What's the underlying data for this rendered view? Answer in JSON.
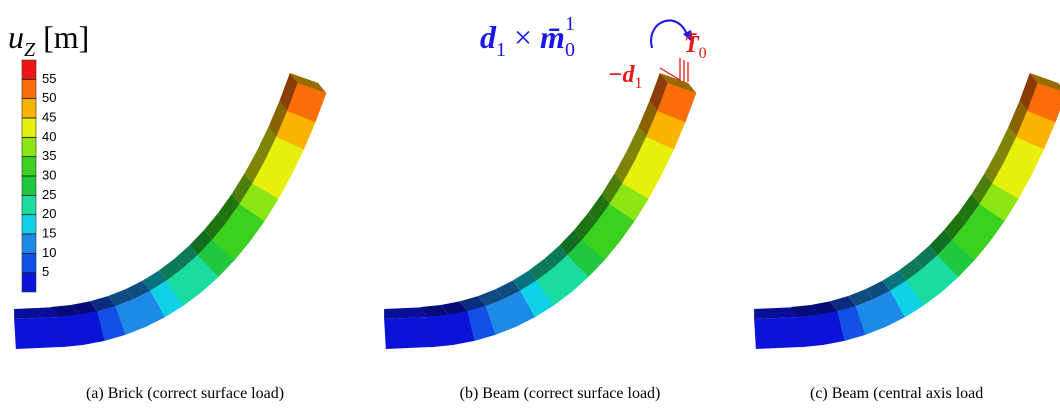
{
  "colorbar": {
    "label_base": "u",
    "label_sub": "Z",
    "label_unit": "[m]",
    "ticks": [
      5,
      10,
      15,
      20,
      25,
      30,
      35,
      40,
      45,
      50,
      55
    ],
    "colors": [
      "#0a14d8",
      "#1450e6",
      "#1e8ae8",
      "#10d2e6",
      "#18dca0",
      "#20c840",
      "#3ad21e",
      "#8ce614",
      "#e6f00a",
      "#fab400",
      "#fa6e0a",
      "#f01414"
    ]
  },
  "annotations": {
    "moment": {
      "base": "d",
      "sub": "1",
      "times": "×",
      "m": "m̄̄",
      "m_sub": "0",
      "m_sup": "1"
    },
    "traction": {
      "base": "T̄",
      "sub": "0"
    },
    "director": {
      "base": "−d",
      "sub": "1"
    }
  },
  "captions": [
    "(a) Brick (correct surface load)",
    "(b) Beam (correct surface load)",
    "(c) Beam (central axis load"
  ]
}
